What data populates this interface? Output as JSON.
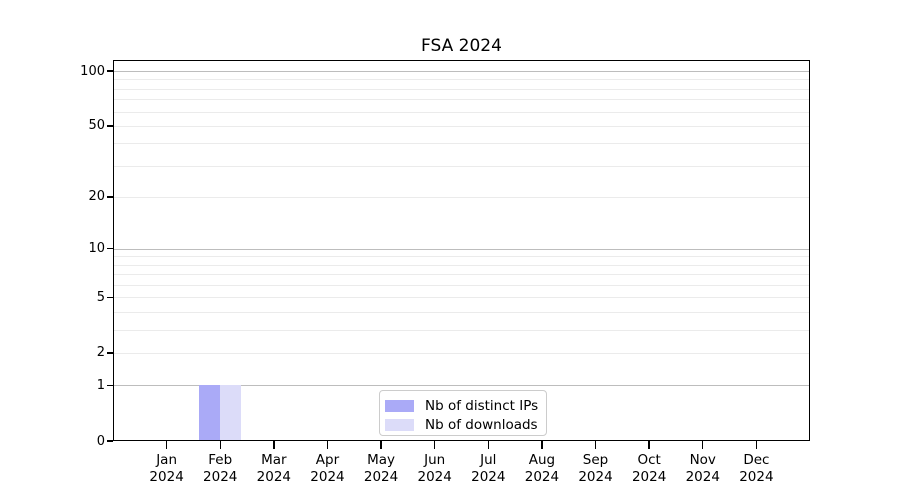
{
  "title": "FSA 2024",
  "colors": {
    "background": "#ffffff",
    "axis": "#000000",
    "grid_major": "#bdbdbd",
    "grid_minor": "#ebebeb",
    "legend_border": "#cccccc",
    "bar_distinct_ips": "#aaaaf7",
    "bar_downloads": "#dcdcf9"
  },
  "legend": {
    "position": "lower center",
    "items": [
      {
        "label": "Nb of distinct IPs",
        "color": "#aaaaf7"
      },
      {
        "label": "Nb of downloads",
        "color": "#dcdcf9"
      }
    ]
  },
  "chart_data": {
    "type": "bar",
    "title": "FSA 2024",
    "xlabel": "",
    "ylabel": "",
    "categories": [
      "Jan",
      "Feb",
      "Mar",
      "Apr",
      "May",
      "Jun",
      "Jul",
      "Aug",
      "Sep",
      "Oct",
      "Nov",
      "Dec"
    ],
    "category_year": "2024",
    "series": [
      {
        "name": "Nb of distinct IPs",
        "color": "#aaaaf7",
        "values": [
          0,
          1,
          0,
          0,
          0,
          0,
          0,
          0,
          0,
          0,
          0,
          0
        ]
      },
      {
        "name": "Nb of downloads",
        "color": "#dcdcf9",
        "values": [
          0,
          1,
          0,
          0,
          0,
          0,
          0,
          0,
          0,
          0,
          0,
          0
        ]
      }
    ],
    "yscale": "log1p",
    "ylim": [
      0,
      115
    ],
    "y_tick_labels": [
      0,
      1,
      2,
      5,
      10,
      20,
      50,
      100
    ],
    "y_major_gridlines": [
      1,
      10,
      100
    ],
    "y_minor_gridlines": [
      2,
      3,
      4,
      5,
      6,
      7,
      8,
      9,
      20,
      30,
      40,
      50,
      60,
      70,
      80,
      90
    ],
    "grid": true,
    "legend_position": "lower center"
  }
}
